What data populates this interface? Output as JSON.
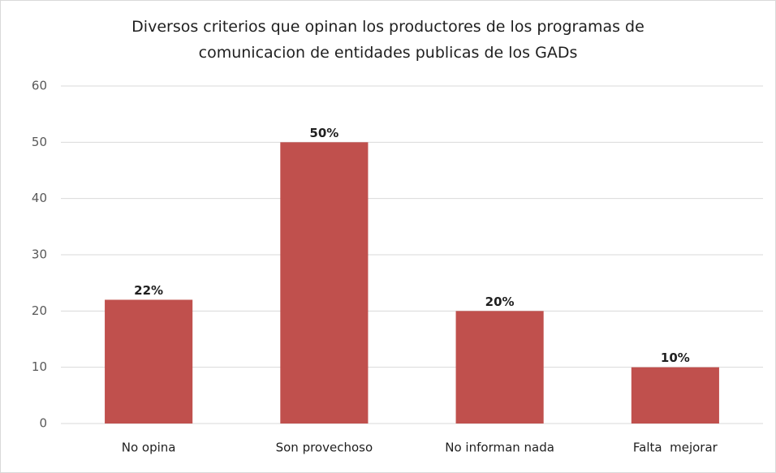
{
  "chart_data": {
    "type": "bar",
    "title": "Diversos criterios que opinan los productores de los programas de comunicacion de entidades publicas de los GADs",
    "categories": [
      "No opina",
      "Son provechoso",
      "No informan nada",
      "Falta  mejorar"
    ],
    "values": [
      22,
      50,
      20,
      10
    ],
    "value_labels": [
      "22%",
      "50%",
      "20%",
      "10%"
    ],
    "color": "#c0504d",
    "ylim": [
      0,
      60
    ],
    "yticks": [
      0,
      10,
      20,
      30,
      40,
      50,
      60
    ],
    "grid": true
  }
}
